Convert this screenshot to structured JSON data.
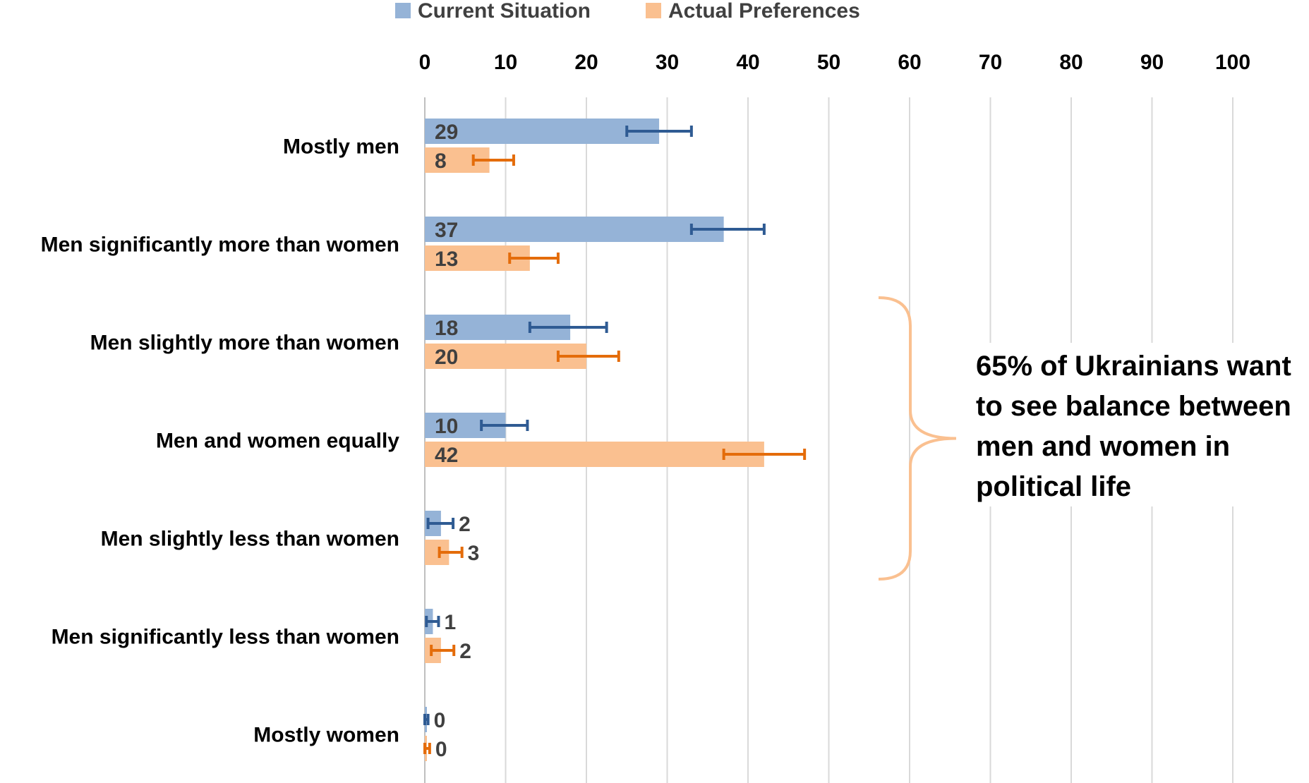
{
  "chart_data": {
    "type": "bar",
    "orientation": "horizontal",
    "categories": [
      "Mostly men",
      "Men significantly more than women",
      "Men slightly more than women",
      "Men and women equally",
      "Men slightly less than women",
      "Men significantly less than women",
      "Mostly women"
    ],
    "series": [
      {
        "name": "Current Situation",
        "color": "#95b3d7",
        "error_color": "#2f5b93",
        "values": [
          29,
          37,
          18,
          10,
          2,
          1,
          0
        ],
        "error_low": [
          25,
          33,
          13,
          7,
          0.4,
          0.2,
          0
        ],
        "error_high": [
          33,
          42,
          22.5,
          12.7,
          3.5,
          1.7,
          0.4
        ]
      },
      {
        "name": "Actual Preferences",
        "color": "#fac090",
        "error_color": "#e46c0a",
        "values": [
          8,
          13,
          20,
          42,
          3,
          2,
          0
        ],
        "error_low": [
          6,
          10.5,
          16.5,
          37,
          1.8,
          0.8,
          0
        ],
        "error_high": [
          11,
          16.5,
          24,
          47,
          4.6,
          3.6,
          0.6
        ]
      }
    ],
    "xlim": [
      0,
      100
    ],
    "xticks": [
      "0",
      "10",
      "20",
      "30",
      "40",
      "50",
      "60",
      "70",
      "80",
      "90",
      "100"
    ],
    "xaxis_position": "top",
    "grid": true,
    "legend_position": "top",
    "annotation": {
      "lines": [
        "65% of Ukrainians want",
        "to see balance between",
        "men and women in",
        "political life"
      ],
      "bracket_color": "#fac090",
      "bracket_categories": [
        "Men slightly more than women",
        "Men slightly less than women"
      ]
    }
  }
}
